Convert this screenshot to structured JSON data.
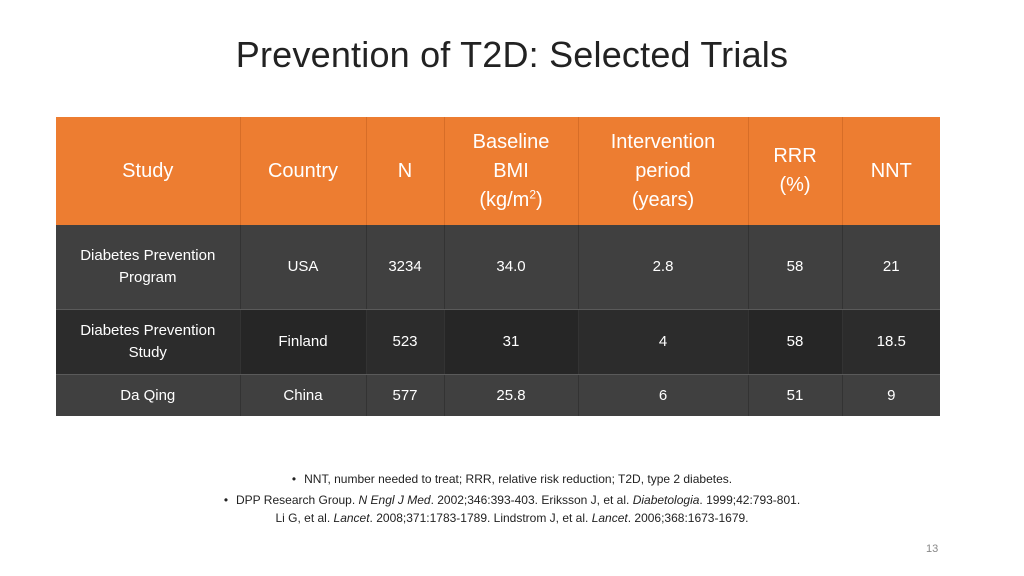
{
  "slide": {
    "title": "Prevention of T2D: Selected Trials",
    "page_number": "13"
  },
  "table": {
    "headers": {
      "study": "Study",
      "country": "Country",
      "n": "N",
      "bmi_line1": "Baseline",
      "bmi_line2": "BMI",
      "bmi_line3_pre": "(kg/m",
      "bmi_line3_sup": "2",
      "bmi_line3_post": ")",
      "period_line1": "Intervention",
      "period_line2": "period",
      "period_line3": "(years)",
      "rrr_line1": "RRR",
      "rrr_line2": "(%)",
      "nnt": "NNT"
    },
    "rows": [
      {
        "study_line1": "Diabetes Prevention",
        "study_line2": "Program",
        "country": "USA",
        "n": "3234",
        "bmi": "34.0",
        "period": "2.8",
        "rrr": "58",
        "nnt": "21"
      },
      {
        "study_line1": "Diabetes Prevention",
        "study_line2": "Study",
        "country": "Finland",
        "n": "523",
        "bmi": "31",
        "period": "4",
        "rrr": "58",
        "nnt": "18.5"
      },
      {
        "study_line1": "Da Qing",
        "study_line2": "",
        "country": "China",
        "n": "577",
        "bmi": "25.8",
        "period": "6",
        "rrr": "51",
        "nnt": "9"
      }
    ]
  },
  "footnotes": {
    "bullet": "•",
    "abbreviations": "NNT, number needed to treat; RRR, relative risk reduction; T2D, type 2 diabetes.",
    "refs": {
      "r1_pre": "DPP Research Group. ",
      "r1_journal": "N Engl J Med",
      "r1_post": ". 2002;346:393-403. Eriksson J, et al. ",
      "r2_journal": "Diabetologia",
      "r2_post": ". 1999;42:793-801.",
      "r3_pre": "Li G, et al. ",
      "r3_journal": "Lancet",
      "r3_post": ". 2008;371:1783-1789. Lindstrom J, et al. ",
      "r4_journal": "Lancet",
      "r4_post": ". 2006;368:1673-1679."
    }
  }
}
